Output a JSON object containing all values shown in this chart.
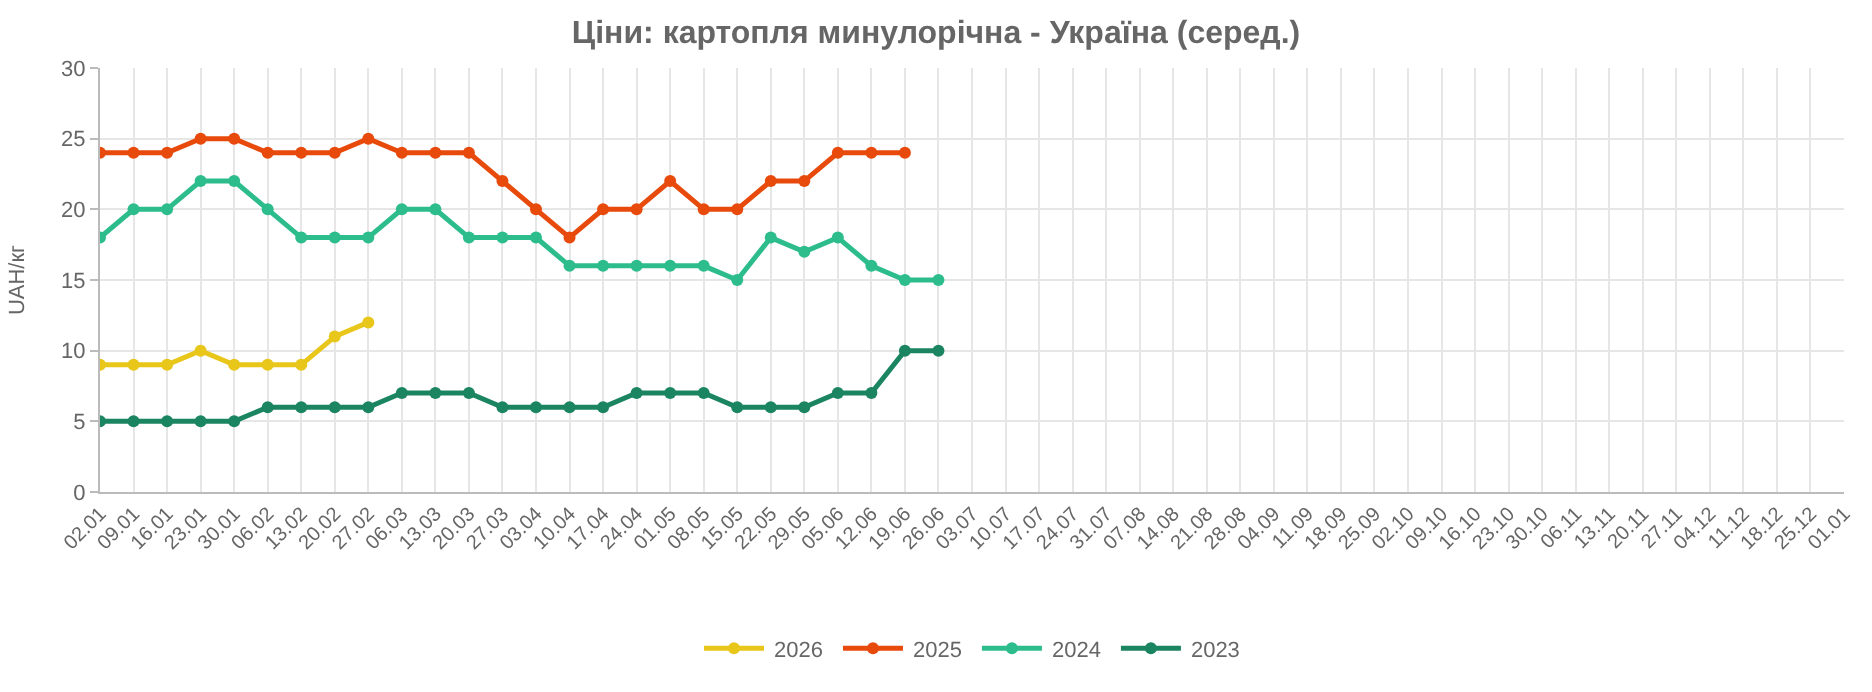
{
  "chart_data": {
    "type": "line",
    "title": "Ціни: картопля минулорічна - Україна (серед.)",
    "ylabel": "UAH/кг",
    "categories": [
      "02.01",
      "09.01",
      "16.01",
      "23.01",
      "30.01",
      "06.02",
      "13.02",
      "20.02",
      "27.02",
      "06.03",
      "13.03",
      "20.03",
      "27.03",
      "03.04",
      "10.04",
      "17.04",
      "24.04",
      "01.05",
      "08.05",
      "15.05",
      "22.05",
      "29.05",
      "05.06",
      "12.06",
      "19.06",
      "26.06",
      "03.07",
      "10.07",
      "17.07",
      "24.07",
      "31.07",
      "07.08",
      "14.08",
      "21.08",
      "28.08",
      "04.09",
      "11.09",
      "18.09",
      "25.09",
      "02.10",
      "09.10",
      "16.10",
      "23.10",
      "30.10",
      "06.11",
      "13.11",
      "20.11",
      "27.11",
      "04.12",
      "11.12",
      "18.12",
      "25.12",
      "01.01"
    ],
    "series": [
      {
        "name": "2026",
        "color": "#e8c61a",
        "values": [
          9,
          9,
          9,
          10,
          9,
          9,
          9,
          11,
          12,
          null,
          null,
          null,
          null,
          null,
          null,
          null,
          null,
          null,
          null,
          null,
          null,
          null,
          null,
          null,
          null,
          null,
          null,
          null,
          null,
          null,
          null,
          null,
          null,
          null,
          null,
          null,
          null,
          null,
          null,
          null,
          null,
          null,
          null,
          null,
          null,
          null,
          null,
          null,
          null,
          null,
          null,
          null,
          null
        ]
      },
      {
        "name": "2025",
        "color": "#e84a0c",
        "values": [
          24,
          24,
          24,
          25,
          25,
          24,
          24,
          24,
          25,
          24,
          24,
          24,
          22,
          20,
          18,
          20,
          20,
          22,
          20,
          20,
          22,
          22,
          24,
          24,
          24,
          null,
          null,
          null,
          null,
          null,
          null,
          null,
          null,
          null,
          null,
          null,
          null,
          null,
          null,
          null,
          null,
          null,
          null,
          null,
          null,
          null,
          null,
          null,
          null,
          null,
          null,
          null,
          null
        ]
      },
      {
        "name": "2024",
        "color": "#2dbd8c",
        "values": [
          18,
          20,
          20,
          22,
          22,
          20,
          18,
          18,
          18,
          20,
          20,
          18,
          18,
          18,
          16,
          16,
          16,
          16,
          16,
          15,
          18,
          17,
          18,
          16,
          15,
          15,
          null,
          null,
          null,
          null,
          null,
          null,
          null,
          null,
          null,
          null,
          null,
          null,
          null,
          null,
          null,
          null,
          null,
          null,
          null,
          null,
          null,
          null,
          null,
          null,
          null,
          null,
          null
        ]
      },
      {
        "name": "2023",
        "color": "#1b8561",
        "values": [
          5,
          5,
          5,
          5,
          5,
          6,
          6,
          6,
          6,
          7,
          7,
          7,
          6,
          6,
          6,
          6,
          7,
          7,
          7,
          6,
          6,
          6,
          7,
          7,
          10,
          10,
          null,
          null,
          null,
          null,
          null,
          null,
          null,
          null,
          null,
          null,
          null,
          null,
          null,
          null,
          null,
          null,
          null,
          null,
          null,
          null,
          null,
          null,
          null,
          null,
          null,
          null,
          null
        ]
      }
    ],
    "ylim": [
      0,
      30
    ],
    "yticks": [
      0,
      5,
      10,
      15,
      20,
      25,
      30
    ],
    "grid": true,
    "legend": "bottom",
    "marker": "circle",
    "line_style": "solid"
  }
}
